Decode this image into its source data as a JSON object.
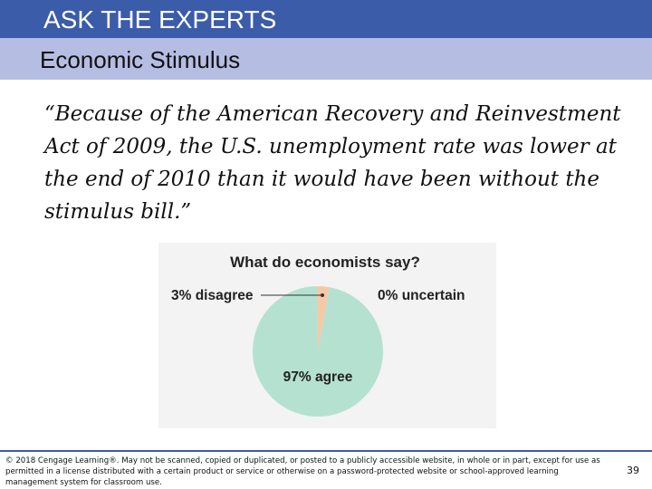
{
  "header": {
    "title": "ASK THE EXPERTS",
    "color": "#3b5ca8"
  },
  "subheader": {
    "title": "Economic Stimulus",
    "color": "#b6bde3"
  },
  "quote": {
    "text": "“Because of the American Recovery and Reinvestment Act of 2009, the U.S.  unemployment rate was lower at the end of 2010 than it would have been without the stimulus bill.”"
  },
  "chart_data": {
    "type": "pie",
    "title": "What do economists say?",
    "slices": [
      {
        "label": "97% agree",
        "value": 97,
        "color": "#b5e1d0"
      },
      {
        "label": "3% disagree",
        "value": 3,
        "color": "#f6c9a6"
      },
      {
        "label": "0% uncertain",
        "value": 0,
        "color": "#f3f3f3"
      }
    ]
  },
  "footer": {
    "copyright": "© 2018 Cengage Learning®. May not be scanned, copied or duplicated, or posted to a publicly accessible website, in whole or in part, except for use as permitted in a license distributed with a certain product or service or otherwise on a password-protected website or school-approved learning management system for classroom use.",
    "page_number": "39"
  }
}
